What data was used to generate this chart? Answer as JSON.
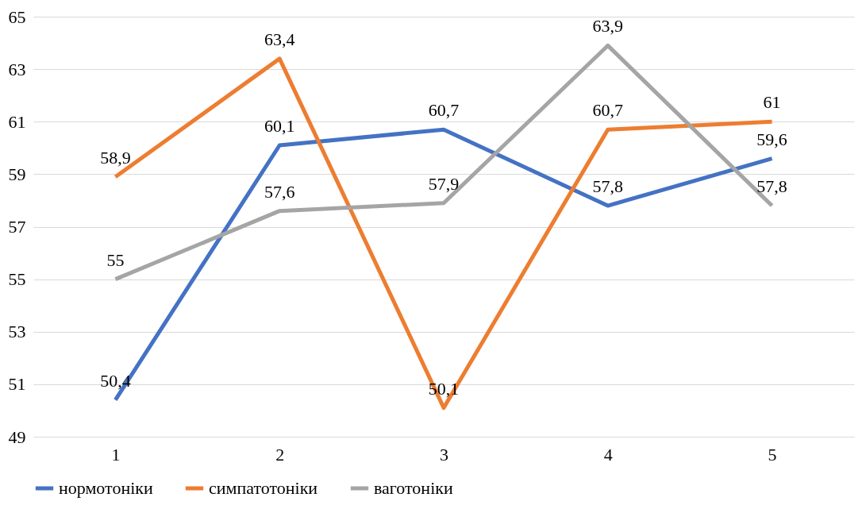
{
  "chart_data": {
    "type": "line",
    "categories": [
      "1",
      "2",
      "3",
      "4",
      "5"
    ],
    "series": [
      {
        "name": "нормотоніки",
        "color": "#4472c4",
        "values": [
          50.4,
          60.1,
          60.7,
          57.8,
          59.6
        ],
        "value_labels": [
          "50,4",
          "60,1",
          "60,7",
          "57,8",
          "59,6"
        ]
      },
      {
        "name": "симпатотоніки",
        "color": "#ed7d31",
        "values": [
          58.9,
          63.4,
          50.1,
          60.7,
          61
        ],
        "value_labels": [
          "58,9",
          "63,4",
          "50,1",
          "60,7",
          "61"
        ]
      },
      {
        "name": "ваготоніки",
        "color": "#a5a5a5",
        "values": [
          55,
          57.6,
          57.9,
          63.9,
          57.8
        ],
        "value_labels": [
          "55",
          "57,6",
          "57,9",
          "63,9",
          "57,8"
        ]
      }
    ],
    "ylim": [
      49,
      65
    ],
    "yticks": [
      49,
      51,
      53,
      55,
      57,
      59,
      61,
      63,
      65
    ],
    "grid": "y",
    "legend": "bottom",
    "marker": "none",
    "line_style": "solid"
  }
}
